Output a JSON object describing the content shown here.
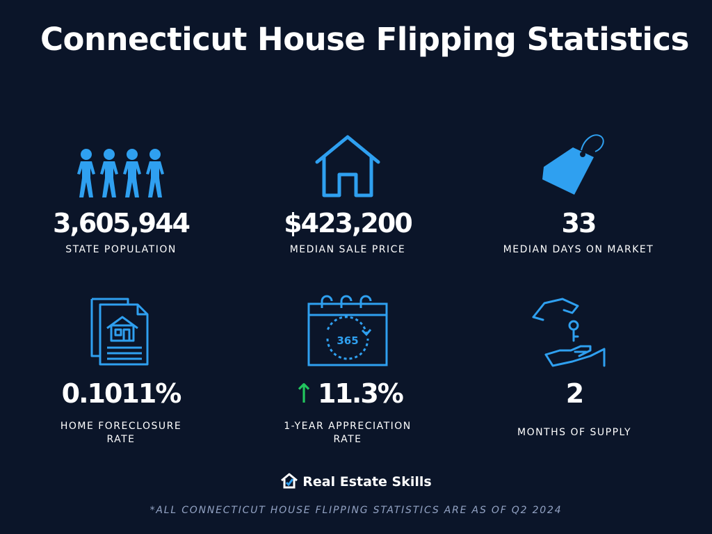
{
  "title": "Connecticut House Flipping Statistics",
  "accent_color": "#2fa0f0",
  "stats": [
    {
      "icon": "people-icon",
      "value": "3,605,944",
      "label": "STATE POPULATION"
    },
    {
      "icon": "house-icon",
      "value": "$423,200",
      "label": "MEDIAN SALE PRICE"
    },
    {
      "icon": "price-tag-icon",
      "value": "33",
      "label": "MEDIAN DAYS ON MARKET"
    },
    {
      "icon": "foreclosure-document-icon",
      "value": "0.1011%",
      "label_line1": "HOME FORECLOSURE",
      "label_line2": "RATE"
    },
    {
      "icon": "calendar-365-icon",
      "value": "11.3%",
      "trend": "up",
      "label_line1": "1-YEAR APPRECIATION",
      "label_line2": "RATE"
    },
    {
      "icon": "hand-key-icon",
      "value": "2",
      "label": "MONTHS OF SUPPLY"
    }
  ],
  "brand": {
    "name": "Real Estate Skills",
    "icon": "house-logo-icon"
  },
  "footnote": "*ALL CONNECTICUT HOUSE FLIPPING STATISTICS ARE AS OF Q2 2024"
}
